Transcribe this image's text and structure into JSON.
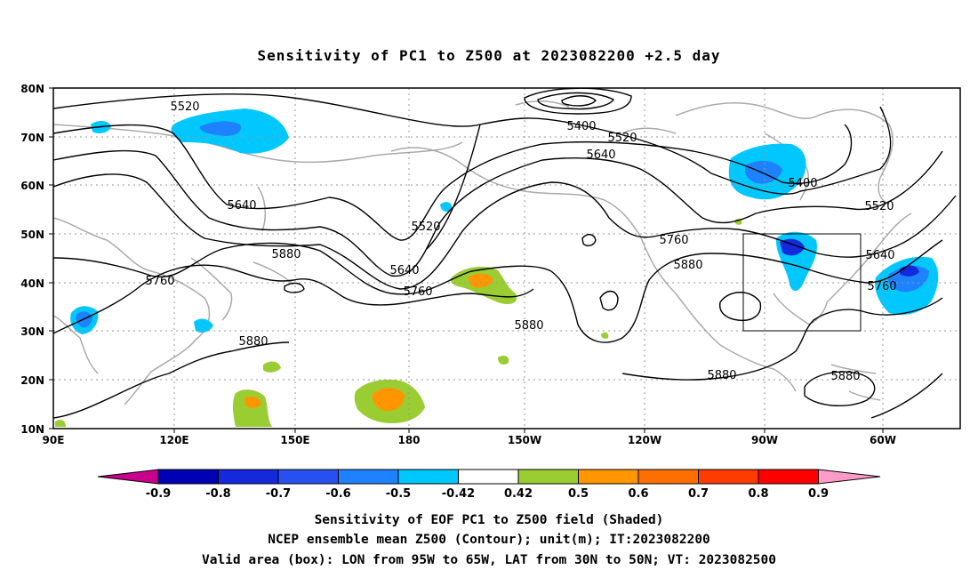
{
  "title": "Sensitivity of PC1 to Z500 at 2023082200 +2.5 day",
  "map": {
    "lat_labels": [
      "80N",
      "70N",
      "60N",
      "50N",
      "40N",
      "30N",
      "20N",
      "10N"
    ],
    "lon_labels": [
      "90E",
      "120E",
      "150E",
      "180",
      "150W",
      "120W",
      "90W",
      "60W"
    ],
    "contour_labels": [
      "5520",
      "5400",
      "5520",
      "5640",
      "5400",
      "5640",
      "5520",
      "5520",
      "5760",
      "5880",
      "5640",
      "5760",
      "5760",
      "5880",
      "5880",
      "5640",
      "5760",
      "5880",
      "5880",
      "5880"
    ]
  },
  "colorbar": {
    "labels": [
      "-0.9",
      "-0.8",
      "-0.7",
      "-0.6",
      "-0.5",
      "-0.42",
      "0.42",
      "0.5",
      "0.6",
      "0.7",
      "0.8",
      "0.9"
    ],
    "colors": [
      "#0000b4",
      "#1428dc",
      "#2850f0",
      "#1e82ff",
      "#00c8ff",
      "#ffffff",
      "#9acd32",
      "#ff9600",
      "#ff6e00",
      "#ff3c00",
      "#ff0000"
    ],
    "low_end_color": "#c8008c",
    "high_end_color": "#ff9bc8"
  },
  "caption": {
    "line1": "Sensitivity of EOF PC1 to Z500 field (Shaded)",
    "line2": "NCEP ensemble mean Z500 (Contour); unit(m); IT:2023082200",
    "line3": "Valid area (box): LON from 95W to 65W, LAT from 30N to 50N; VT: 2023082500"
  }
}
